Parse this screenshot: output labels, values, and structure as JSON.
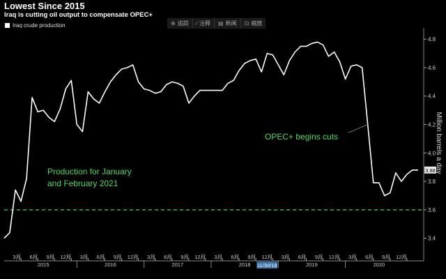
{
  "header": {
    "title": "Lowest Since 2015",
    "subtitle": "Iraq is cutting oil output to compensate OPEC+"
  },
  "legend": {
    "label": "Iraq crude production"
  },
  "toolbar": {
    "items": [
      {
        "icon": "crosshair-icon",
        "glyph": "⊕",
        "label": "追踪"
      },
      {
        "icon": "pencil-icon",
        "glyph": "∕",
        "label": "注释"
      },
      {
        "icon": "news-icon",
        "glyph": "▤",
        "label": "新闻"
      },
      {
        "icon": "zoom-icon",
        "glyph": "⊡",
        "label": "缩放"
      }
    ]
  },
  "chart_data": {
    "type": "line",
    "ylabel": "Million barrels a day",
    "ylim": [
      3.3,
      4.85
    ],
    "yticks": [
      3.4,
      3.6,
      3.8,
      4.0,
      4.2,
      4.4,
      4.6,
      4.8
    ],
    "grid": false,
    "colors": {
      "line": "#ffffff",
      "reference": "#4cd964",
      "annotation": "#4cd964",
      "background": "#000000"
    },
    "x_start": "2014-12",
    "x_end": "2021-03",
    "month_ticks": [
      {
        "date": "2015-03",
        "label": "3月"
      },
      {
        "date": "2015-06",
        "label": "6月"
      },
      {
        "date": "2015-09",
        "label": "9月"
      },
      {
        "date": "2015-12",
        "label": "12月"
      },
      {
        "date": "2016-03",
        "label": "3月"
      },
      {
        "date": "2016-06",
        "label": "6月"
      },
      {
        "date": "2016-09",
        "label": "9月"
      },
      {
        "date": "2016-12",
        "label": "12月"
      },
      {
        "date": "2017-03",
        "label": "3月"
      },
      {
        "date": "2017-06",
        "label": "6月"
      },
      {
        "date": "2017-09",
        "label": "9月"
      },
      {
        "date": "2017-12",
        "label": "12月"
      },
      {
        "date": "2018-03",
        "label": "3月"
      },
      {
        "date": "2018-06",
        "label": "6月"
      },
      {
        "date": "2018-09",
        "label": "9月"
      },
      {
        "date": "2018-12",
        "label": "12月"
      },
      {
        "date": "2019-03",
        "label": "3月"
      },
      {
        "date": "2019-06",
        "label": "6月"
      },
      {
        "date": "2019-09",
        "label": "9月"
      },
      {
        "date": "2019-12",
        "label": "12月"
      },
      {
        "date": "2020-03",
        "label": "3月"
      },
      {
        "date": "2020-06",
        "label": "6月"
      },
      {
        "date": "2020-09",
        "label": "9月"
      },
      {
        "date": "2020-12",
        "label": "12月"
      }
    ],
    "year_labels": [
      {
        "date": "2015-07",
        "label": "2015"
      },
      {
        "date": "2016-07",
        "label": "2016"
      },
      {
        "date": "2017-07",
        "label": "2017"
      },
      {
        "date": "2018-07",
        "label": "2018"
      },
      {
        "date": "2019-07",
        "label": "2019"
      },
      {
        "date": "2020-07",
        "label": "2020"
      }
    ],
    "year_boundaries": [
      "2016-01",
      "2017-01",
      "2018-01",
      "2019-01",
      "2020-01"
    ],
    "highlight_tick": {
      "date": "2018-11",
      "label": "11/30/18"
    },
    "series": [
      {
        "name": "Iraq crude production",
        "x": [
          "2014-12",
          "2015-01",
          "2015-02",
          "2015-03",
          "2015-04",
          "2015-05",
          "2015-06",
          "2015-07",
          "2015-08",
          "2015-09",
          "2015-10",
          "2015-11",
          "2015-12",
          "2016-01",
          "2016-02",
          "2016-03",
          "2016-04",
          "2016-05",
          "2016-06",
          "2016-07",
          "2016-08",
          "2016-09",
          "2016-10",
          "2016-11",
          "2016-12",
          "2017-01",
          "2017-02",
          "2017-03",
          "2017-04",
          "2017-05",
          "2017-06",
          "2017-07",
          "2017-08",
          "2017-09",
          "2017-10",
          "2017-11",
          "2017-12",
          "2018-01",
          "2018-02",
          "2018-03",
          "2018-04",
          "2018-05",
          "2018-06",
          "2018-07",
          "2018-08",
          "2018-09",
          "2018-10",
          "2018-11",
          "2018-12",
          "2019-01",
          "2019-02",
          "2019-03",
          "2019-04",
          "2019-05",
          "2019-06",
          "2019-07",
          "2019-08",
          "2019-09",
          "2019-10",
          "2019-11",
          "2019-12",
          "2020-01",
          "2020-02",
          "2020-03",
          "2020-04",
          "2020-05",
          "2020-06",
          "2020-07",
          "2020-08",
          "2020-09",
          "2020-10",
          "2020-11",
          "2020-12",
          "2021-01",
          "2021-02"
        ],
        "y": [
          3.4,
          3.44,
          3.74,
          3.66,
          3.82,
          4.39,
          4.29,
          4.3,
          4.25,
          4.22,
          4.31,
          4.45,
          4.51,
          4.2,
          4.15,
          4.43,
          4.38,
          4.35,
          4.43,
          4.5,
          4.55,
          4.59,
          4.6,
          4.62,
          4.5,
          4.45,
          4.44,
          4.42,
          4.43,
          4.48,
          4.5,
          4.49,
          4.47,
          4.35,
          4.4,
          4.44,
          4.44,
          4.44,
          4.44,
          4.44,
          4.49,
          4.51,
          4.58,
          4.63,
          4.65,
          4.66,
          4.57,
          4.7,
          4.69,
          4.62,
          4.55,
          4.65,
          4.71,
          4.75,
          4.75,
          4.77,
          4.78,
          4.76,
          4.68,
          4.71,
          4.64,
          4.52,
          4.61,
          4.62,
          4.6,
          4.2,
          3.79,
          3.79,
          3.7,
          3.72,
          3.86,
          3.8,
          3.85,
          3.88,
          3.88
        ]
      }
    ],
    "last_value_label": "3.88",
    "reference_line": {
      "y": 3.6,
      "style": "dashed"
    },
    "annotations": [
      {
        "text": "OPEC+ begins cuts",
        "leader_to": {
          "x": "2020-05",
          "y": 4.2
        }
      },
      {
        "lines": [
          "Production for January",
          "and February 2021"
        ]
      }
    ]
  }
}
